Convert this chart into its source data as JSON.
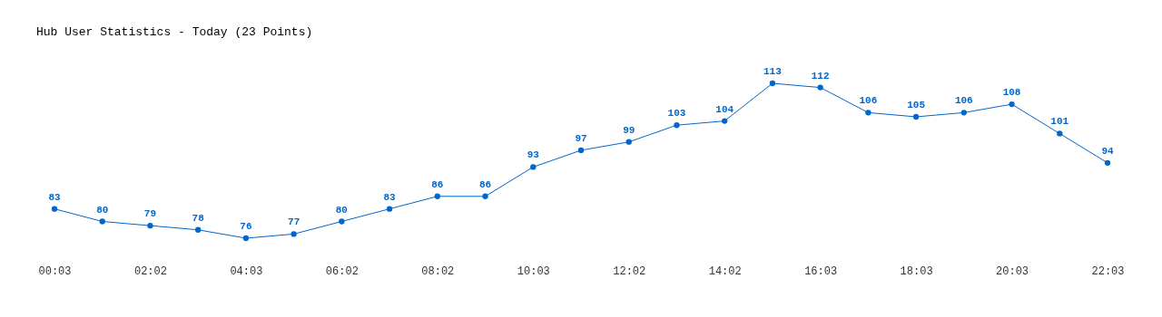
{
  "chart_data": {
    "type": "line",
    "title": "Hub User Statistics - Today (23 Points)",
    "categories": [
      "00:03",
      null,
      "02:02",
      null,
      "04:03",
      null,
      "06:02",
      null,
      "08:02",
      null,
      "10:03",
      null,
      "12:02",
      null,
      "14:02",
      null,
      "16:03",
      null,
      "18:03",
      null,
      "20:03",
      null,
      "22:03"
    ],
    "series": [
      {
        "color": "#0066cc",
        "values": [
          83,
          80,
          79,
          78,
          76,
          77,
          80,
          83,
          86,
          86,
          93,
          97,
          99,
          103,
          104,
          113,
          112,
          106,
          105,
          106,
          108,
          101,
          94
        ]
      }
    ],
    "data_labels": true,
    "marker": "circle",
    "line_style": "solid",
    "grid": false,
    "tick_labels": "x"
  }
}
